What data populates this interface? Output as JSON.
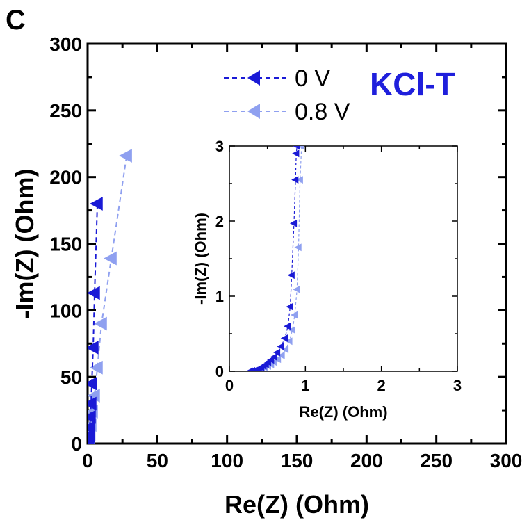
{
  "panel_label": "C",
  "annotation": "KCl-T",
  "colors": {
    "dark_blue": "#1a1ad6",
    "light_blue": "#8fa0f0",
    "annotation": "#1f1fdc",
    "axis": "#000000"
  },
  "chart_data": [
    {
      "type": "scatter",
      "role": "main",
      "xlabel": "Re(Z) (Ohm)",
      "ylabel": "-Im(Z) (Ohm)",
      "xlim": [
        0,
        300
      ],
      "ylim": [
        0,
        300
      ],
      "xticks": [
        0,
        50,
        100,
        150,
        200,
        250,
        300
      ],
      "yticks": [
        0,
        50,
        100,
        150,
        200,
        250,
        300
      ],
      "xtick_labels": [
        "0",
        "50",
        "100",
        "150",
        "200",
        "250",
        "300"
      ],
      "ytick_labels": [
        "0",
        "50",
        "100",
        "150",
        "200",
        "250",
        "300"
      ],
      "legend_position": "top-right",
      "series": [
        {
          "name": "0 V",
          "color": "#1a1ad6",
          "marker": "left-triangle",
          "line": "dashed",
          "x": [
            0.8,
            1.0,
            1.2,
            1.5,
            2.0,
            2.5,
            3.0,
            4.0,
            5.0,
            7.0
          ],
          "y": [
            1,
            3,
            6,
            12,
            20,
            30,
            45,
            72,
            113,
            180
          ]
        },
        {
          "name": "0.8 V",
          "color": "#8fa0f0",
          "marker": "left-triangle",
          "line": "dashed",
          "x": [
            1.0,
            1.3,
            1.8,
            2.5,
            3.5,
            5.0,
            7.0,
            10.0,
            17.0,
            28.0
          ],
          "y": [
            1,
            3,
            7,
            14,
            24,
            36,
            57,
            90,
            139,
            216
          ]
        }
      ]
    },
    {
      "type": "scatter",
      "role": "inset",
      "xlabel": "Re(Z) (Ohm)",
      "ylabel": "-Im(Z) (Ohm)",
      "xlim": [
        0,
        3
      ],
      "ylim": [
        0,
        3
      ],
      "xticks": [
        0,
        1,
        2,
        3
      ],
      "yticks": [
        0,
        1,
        2,
        3
      ],
      "xtick_labels": [
        "0",
        "1",
        "2",
        "3"
      ],
      "ytick_labels": [
        "0",
        "1",
        "2",
        "3"
      ],
      "series": [
        {
          "name": "0 V",
          "color": "#1a1ad6",
          "marker": "left-triangle",
          "line": "dashed",
          "x": [
            0.27,
            0.3,
            0.33,
            0.36,
            0.39,
            0.42,
            0.45,
            0.48,
            0.51,
            0.55,
            0.59,
            0.63,
            0.68,
            0.73,
            0.77,
            0.8,
            0.82,
            0.85,
            0.87,
            0.88,
            0.89
          ],
          "y": [
            0.0,
            0.005,
            0.01,
            0.02,
            0.035,
            0.05,
            0.07,
            0.09,
            0.12,
            0.15,
            0.19,
            0.25,
            0.33,
            0.44,
            0.6,
            0.86,
            1.28,
            1.97,
            2.55,
            2.9,
            3.0
          ]
        },
        {
          "name": "0.8 V",
          "color": "#8fa0f0",
          "marker": "left-triangle",
          "line": "dashed",
          "x": [
            0.3,
            0.33,
            0.36,
            0.4,
            0.43,
            0.47,
            0.51,
            0.55,
            0.59,
            0.64,
            0.69,
            0.74,
            0.79,
            0.83,
            0.86,
            0.89,
            0.91,
            0.93,
            0.95
          ],
          "y": [
            0.0,
            0.005,
            0.01,
            0.02,
            0.03,
            0.05,
            0.07,
            0.09,
            0.12,
            0.16,
            0.21,
            0.29,
            0.4,
            0.55,
            0.75,
            1.09,
            1.65,
            2.55,
            3.0
          ]
        }
      ]
    }
  ]
}
